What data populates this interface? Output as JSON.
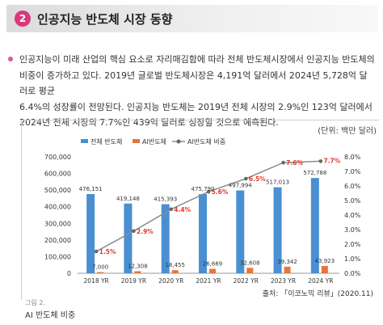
{
  "header": {
    "number": "2",
    "title": "인공지능 반도체 시장 동향"
  },
  "paragraph": {
    "lines": [
      "인공지능이 미래 산업의 핵심 요소로 자리매김함에 따라 전체 반도체시장에서 인공지능 반도체의",
      "비중이 증가하고 있다. 2019년 글로벌 반도체시장은 4,191억 달러에서 2024년 5,728억 달러로 평균",
      "6.4%의 성장률이 전망된다. 인공지능 반도체는 2019년 전체 시장의 2.9%인 123억 달러에서",
      "2024년 전체 시장의 7.7%인 439억 달러로 성장할 것으로 예측된다."
    ]
  },
  "unit_label": "(단위: 백만 달러)",
  "source": "출처: 「이코노믹 리뷰」(2020.11)",
  "caption": {
    "number": "그림 2.",
    "title": "AI 반도체 비중"
  },
  "colors": {
    "total_bar": "#4a8fd1",
    "ai_bar": "#e8753a",
    "ratio_line": "#8c8c8c",
    "ratio_label": "#e0392a",
    "accent": "#d83a7a"
  },
  "chart_data": {
    "type": "bar",
    "categories": [
      "2018 YR",
      "2019 YR",
      "2020 YR",
      "2021 YR",
      "2022 YR",
      "2023 YR",
      "2024 YR"
    ],
    "series": [
      {
        "name": "전체 반도체",
        "type": "bar",
        "axis": "left",
        "values": [
          476151,
          419148,
          415393,
          475790,
          497994,
          517013,
          572788
        ],
        "labels": [
          "476,151",
          "419,148",
          "415,393",
          "475,790",
          "497,994",
          "517,013",
          "572,788"
        ]
      },
      {
        "name": "AI반도체",
        "type": "bar",
        "axis": "left",
        "values": [
          7000,
          12308,
          18455,
          26669,
          32608,
          39342,
          43923
        ],
        "labels": [
          "7,000",
          "12,308",
          "18,455",
          "26,669",
          "32,608",
          "39,342",
          "43,923"
        ]
      },
      {
        "name": "AI반도체 비중",
        "type": "line",
        "axis": "right",
        "values": [
          1.5,
          2.9,
          4.4,
          5.6,
          6.5,
          7.6,
          7.7
        ],
        "labels": [
          "1.5%",
          "2.9%",
          "4.4%",
          "5.6%",
          "6.5%",
          "7.6%",
          "7.7%"
        ]
      }
    ],
    "y_left": {
      "min": 0,
      "max": 700000,
      "ticks": [
        "0",
        "100,000",
        "200,000",
        "300,000",
        "400,000",
        "500,000",
        "600,000",
        "700,000"
      ]
    },
    "y_right": {
      "min": 0,
      "max": 8.0,
      "ticks": [
        "0.0%",
        "1.0%",
        "2.0%",
        "3.0%",
        "4.0%",
        "5.0%",
        "6.0%",
        "7.0%",
        "8.0%"
      ]
    },
    "grid": false,
    "legend_position": "top"
  }
}
